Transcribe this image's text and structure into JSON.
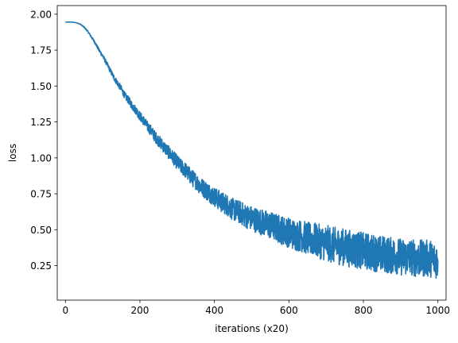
{
  "chart_data": {
    "type": "line",
    "title": "",
    "xlabel": "iterations (x20)",
    "ylabel": "loss",
    "xlim": [
      -22,
      1022
    ],
    "ylim": [
      0.01,
      2.06
    ],
    "grid": false,
    "xticks": [
      0,
      200,
      400,
      600,
      800,
      1000
    ],
    "yticks": [
      0.25,
      0.5,
      0.75,
      1.0,
      1.25,
      1.5,
      1.75,
      2.0
    ],
    "xtick_labels": [
      "0",
      "200",
      "400",
      "600",
      "800",
      "1000"
    ],
    "ytick_labels": [
      "0.25",
      "0.50",
      "0.75",
      "1.00",
      "1.25",
      "1.50",
      "1.75",
      "2.00"
    ],
    "series": [
      {
        "color": "#1f77b4",
        "x": [
          0,
          10,
          20,
          30,
          40,
          50,
          60,
          70,
          80,
          90,
          100,
          110,
          120,
          130,
          140,
          150,
          160,
          170,
          180,
          190,
          200,
          210,
          220,
          230,
          240,
          250,
          260,
          270,
          280,
          290,
          300,
          310,
          320,
          330,
          340,
          350,
          360,
          370,
          380,
          390,
          400,
          410,
          420,
          430,
          440,
          450,
          460,
          470,
          480,
          490,
          500,
          510,
          520,
          530,
          540,
          550,
          560,
          570,
          580,
          590,
          600,
          610,
          620,
          630,
          640,
          650,
          660,
          670,
          680,
          690,
          700,
          710,
          720,
          730,
          740,
          750,
          760,
          770,
          780,
          790,
          800,
          810,
          820,
          830,
          840,
          850,
          860,
          870,
          880,
          890,
          900,
          910,
          920,
          930,
          940,
          950,
          960,
          970,
          980,
          990,
          1000
        ],
        "y": [
          1.945,
          1.945,
          1.944,
          1.94,
          1.93,
          1.91,
          1.88,
          1.84,
          1.8,
          1.75,
          1.71,
          1.66,
          1.61,
          1.56,
          1.52,
          1.48,
          1.43,
          1.4,
          1.36,
          1.33,
          1.29,
          1.26,
          1.22,
          1.19,
          1.15,
          1.12,
          1.09,
          1.06,
          1.03,
          1.0,
          0.97,
          0.94,
          0.92,
          0.89,
          0.86,
          0.84,
          0.81,
          0.79,
          0.77,
          0.75,
          0.73,
          0.71,
          0.69,
          0.68,
          0.66,
          0.64,
          0.63,
          0.62,
          0.6,
          0.59,
          0.58,
          0.57,
          0.56,
          0.55,
          0.54,
          0.53,
          0.52,
          0.51,
          0.5,
          0.49,
          0.48,
          0.47,
          0.46,
          0.46,
          0.45,
          0.44,
          0.43,
          0.43,
          0.42,
          0.41,
          0.41,
          0.4,
          0.39,
          0.39,
          0.38,
          0.38,
          0.37,
          0.37,
          0.36,
          0.36,
          0.35,
          0.35,
          0.34,
          0.34,
          0.33,
          0.33,
          0.33,
          0.32,
          0.32,
          0.32,
          0.31,
          0.31,
          0.31,
          0.31,
          0.3,
          0.3,
          0.3,
          0.3,
          0.3,
          0.29,
          0.29
        ]
      }
    ]
  }
}
